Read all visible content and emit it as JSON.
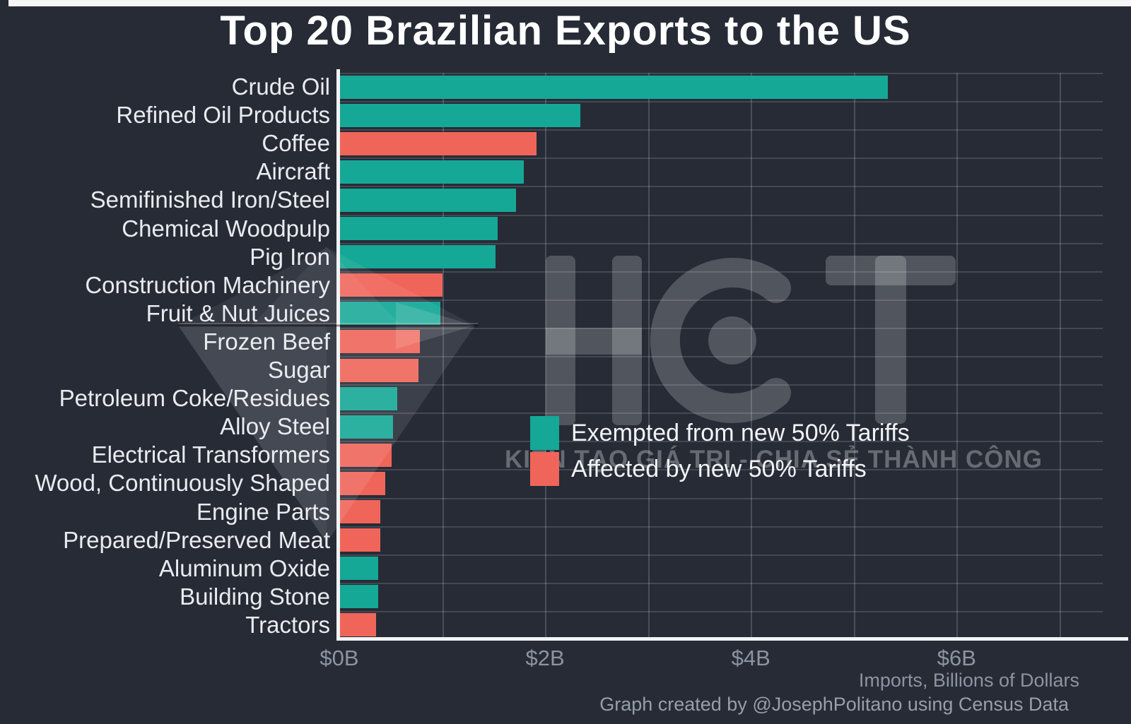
{
  "page": {
    "title": "Top 20 Brazilian Exports to the US",
    "credit": "Graph created by @JosephPolitano using Census Data"
  },
  "chart_data": {
    "type": "bar",
    "orientation": "horizontal",
    "title": "Top 20 Brazilian Exports to the US",
    "xlabel": "Imports, Billions of Dollars",
    "xlim": [
      0,
      7.42
    ],
    "grid": true,
    "gridlines_billions": [
      1,
      2,
      3,
      4,
      5,
      6,
      7
    ],
    "x_ticks": [
      {
        "value": 0,
        "label": "$0B"
      },
      {
        "value": 2,
        "label": "$2B"
      },
      {
        "value": 4,
        "label": "$4B"
      },
      {
        "value": 6,
        "label": "$6B"
      }
    ],
    "categories": [
      "Crude Oil",
      "Refined Oil Products",
      "Coffee",
      "Aircraft",
      "Semifinished Iron/Steel",
      "Chemical Woodpulp",
      "Pig Iron",
      "Construction Machinery",
      "Fruit & Nut Juices",
      "Frozen Beef",
      "Sugar",
      "Petroleum Coke/Residues",
      "Alloy Steel",
      "Electrical Transformers",
      "Wood, Continuously Shaped",
      "Engine Parts",
      "Prepared/Preserved Meat",
      "Aluminum Oxide",
      "Building Stone",
      "Tractors"
    ],
    "values": [
      5.33,
      2.34,
      1.92,
      1.79,
      1.72,
      1.54,
      1.52,
      1.0,
      0.98,
      0.78,
      0.77,
      0.56,
      0.52,
      0.51,
      0.45,
      0.4,
      0.4,
      0.38,
      0.38,
      0.36
    ],
    "statuses": [
      "exempt",
      "exempt",
      "affected",
      "exempt",
      "exempt",
      "exempt",
      "exempt",
      "affected",
      "exempt",
      "affected",
      "affected",
      "exempt",
      "exempt",
      "affected",
      "affected",
      "affected",
      "affected",
      "exempt",
      "exempt",
      "affected"
    ],
    "colors": {
      "exempt": "#15a896",
      "affected": "#f0655a"
    },
    "legend": [
      {
        "status": "exempt",
        "label": "Exempted from new 50% Tariffs"
      },
      {
        "status": "affected",
        "label": "Affected by new 50% Tariffs"
      }
    ],
    "legend_position": "center-right",
    "units": "Billions of US Dollars"
  },
  "watermark": {
    "logo_text": "HCT",
    "tagline": "KIẾN TẠO GIÁ TRỊ - CHIA SẺ THÀNH CÔNG"
  }
}
